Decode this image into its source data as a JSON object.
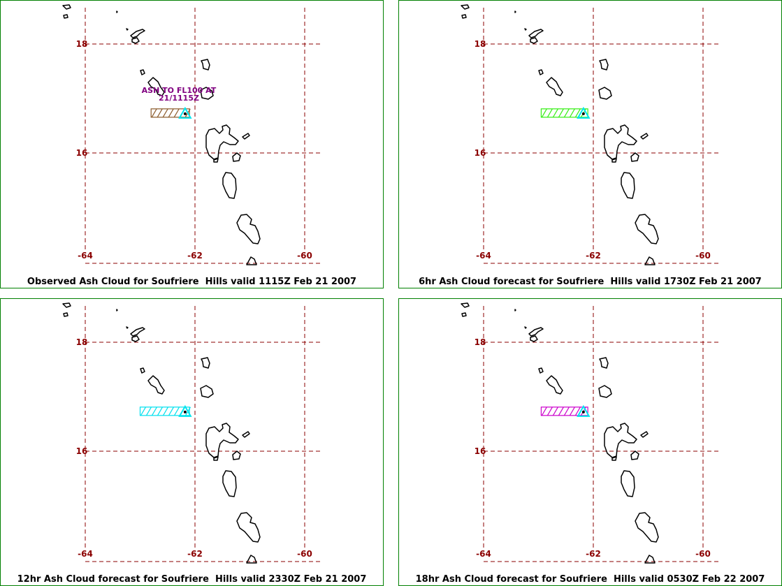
{
  "colors": {
    "frame": "#008000",
    "grid": "#8b0000",
    "tick_label": "#8b0000",
    "coast": "#000000",
    "volcano": "#00e5ee",
    "annotation": "#800080"
  },
  "panels": [
    {
      "caption": "Observed Ash Cloud for Soufriere  Hills valid 1115Z Feb 21 2007",
      "cloud_color": "#8b5a2b",
      "cloud_lon_range": [
        -62.8,
        -62.1
      ],
      "annotation": [
        "ASH TO FL100 AT",
        "21/1115Z"
      ]
    },
    {
      "caption": "6hr Ash Cloud forecast for Soufriere  Hills valid 1730Z Feb 21 2007",
      "cloud_color": "#33ee11",
      "cloud_lon_range": [
        -62.95,
        -62.1
      ]
    },
    {
      "caption": "12hr Ash Cloud forecast for Soufriere  Hills valid 2330Z Feb 21 2007",
      "cloud_color": "#00e0ee",
      "cloud_lon_range": [
        -63.0,
        -62.1
      ]
    },
    {
      "caption": "18hr Ash Cloud forecast for Soufriere  Hills valid 0530Z Feb 22 2007",
      "cloud_color": "#cc00cc",
      "cloud_lon_range": [
        -62.95,
        -62.1
      ]
    }
  ],
  "map": {
    "lat_labels": [
      "18",
      "16"
    ],
    "lon_labels": [
      "-64",
      "-62",
      "-60"
    ],
    "lat_values": [
      18,
      16
    ],
    "lon_values": [
      -64,
      -62,
      -60
    ],
    "volcano": {
      "lon": -62.18,
      "lat": 16.72
    }
  }
}
